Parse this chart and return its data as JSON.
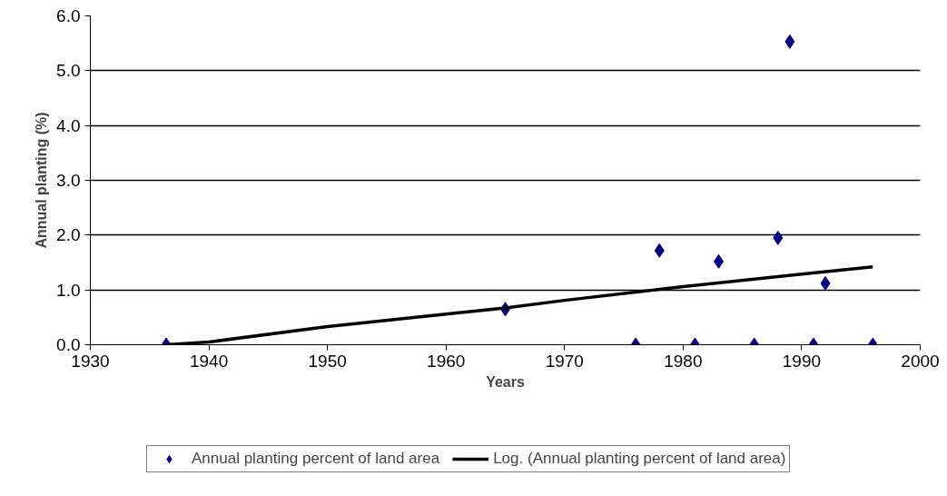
{
  "chart_data": {
    "type": "scatter",
    "xlabel": "Years",
    "ylabel": "Annual planting (%)",
    "xlim": [
      1930,
      2000
    ],
    "xticks": [
      1930,
      1940,
      1950,
      1960,
      1970,
      1980,
      1990,
      2000
    ],
    "ylim": [
      0,
      6
    ],
    "yticks": [
      {
        "value": 0,
        "label": "0.0"
      },
      {
        "value": 1,
        "label": "1.0"
      },
      {
        "value": 2,
        "label": "2.0"
      },
      {
        "value": 3,
        "label": "3.0"
      },
      {
        "value": 4,
        "label": "4.0"
      },
      {
        "value": 5,
        "label": "5.0"
      },
      {
        "value": 6,
        "label": "6.0"
      }
    ],
    "grid": "y",
    "legend": "bottom",
    "marker": "diamond",
    "series": [
      {
        "name": "Annual planting percent of land area",
        "color": "#000080",
        "x": [
          1936.4,
          1965,
          1976,
          1978,
          1981,
          1983,
          1986,
          1988,
          1989,
          1991,
          1992,
          1996
        ],
        "values": [
          0,
          0.65,
          0,
          1.72,
          0,
          1.52,
          0,
          1.95,
          5.53,
          0,
          1.12,
          0
        ]
      },
      {
        "name": "Log. (Annual planting percent of land area)",
        "type": "line",
        "color": "#000000",
        "marker": "none",
        "x": [
          1936.4,
          1940,
          1950,
          1960,
          1965,
          1970,
          1980,
          1990,
          1996
        ],
        "values": [
          0,
          0.05,
          0.33,
          0.56,
          0.67,
          0.81,
          1.06,
          1.29,
          1.42
        ]
      }
    ]
  }
}
